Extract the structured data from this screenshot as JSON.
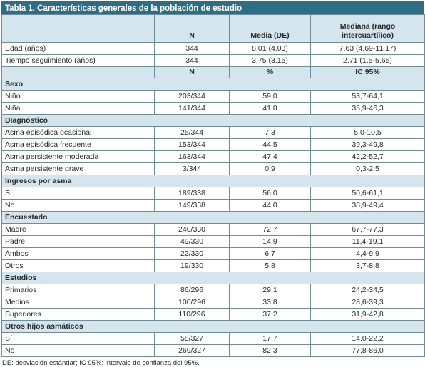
{
  "title": "Tabla 1. Características generales de la población de estudio",
  "header": {
    "col1": "",
    "col2": "N",
    "col3": "Media (DE)",
    "col4": "Mediana (rango intercuartílico)"
  },
  "top_rows": [
    {
      "label": "Edad (años)",
      "n": "344",
      "mean": "8,01 (4,03)",
      "median": "7,63 (4,69-11,17)"
    },
    {
      "label": "Tiempo seguimiento (años)",
      "n": "344",
      "mean": "3,75 (3,15)",
      "median": "2,71 (1,5-5,65)"
    }
  ],
  "header2": {
    "col1": "",
    "col2": "N",
    "col3": "%",
    "col4": "IC 95%"
  },
  "sections": [
    {
      "name": "Sexo",
      "rows": [
        {
          "label": "Niño",
          "n": "203/344",
          "pct": "59,0",
          "ci": "53,7-64,1"
        },
        {
          "label": "Niña",
          "n": "141/344",
          "pct": "41,0",
          "ci": "35,9-46,3"
        }
      ]
    },
    {
      "name": "Diagnóstico",
      "rows": [
        {
          "label": "Asma episódica ocasional",
          "n": "25/344",
          "pct": "7,3",
          "ci": "5,0-10,5"
        },
        {
          "label": "Asma episódica frecuente",
          "n": "153/344",
          "pct": "44,5",
          "ci": "39,3-49,8"
        },
        {
          "label": "Asma persistente moderada",
          "n": "163/344",
          "pct": "47,4",
          "ci": "42,2-52,7"
        },
        {
          "label": "Asma persistente grave",
          "n": "3/344",
          "pct": "0,9",
          "ci": "0,3-2,5"
        }
      ]
    },
    {
      "name": "Ingresos por asma",
      "rows": [
        {
          "label": "Sí",
          "n": "189/338",
          "pct": "56,0",
          "ci": "50,6-61,1"
        },
        {
          "label": "No",
          "n": "149/338",
          "pct": "44,0",
          "ci": "38,9-49,4"
        }
      ]
    },
    {
      "name": "Encuestado",
      "rows": [
        {
          "label": "Madre",
          "n": "240/330",
          "pct": "72,7",
          "ci": "67,7-77,3"
        },
        {
          "label": "Padre",
          "n": "49/330",
          "pct": "14,9",
          "ci": "11,4-19,1"
        },
        {
          "label": "Ambos",
          "n": "22/330",
          "pct": "6,7",
          "ci": "4,4-9,9"
        },
        {
          "label": "Otros",
          "n": "19/330",
          "pct": "5,8",
          "ci": "3,7-8,8"
        }
      ]
    },
    {
      "name": "Estudios",
      "rows": [
        {
          "label": "Primarios",
          "n": "86/296",
          "pct": "29,1",
          "ci": "24,2-34,5"
        },
        {
          "label": "Medios",
          "n": "100/296",
          "pct": "33,8",
          "ci": "28,6-39,3"
        },
        {
          "label": "Superiores",
          "n": "110/296",
          "pct": "37,2",
          "ci": "31,9-42,8"
        }
      ]
    },
    {
      "name": "Otros hijos asmáticos",
      "rows": [
        {
          "label": "Sí",
          "n": "58/327",
          "pct": "17,7",
          "ci": "14,0-22,2"
        },
        {
          "label": "No",
          "n": "269/327",
          "pct": "82,3",
          "ci": "77,8-86,0"
        }
      ]
    }
  ],
  "footnote": "DE: desviación estándar; IC 95%: intervalo de confianza del 95%."
}
